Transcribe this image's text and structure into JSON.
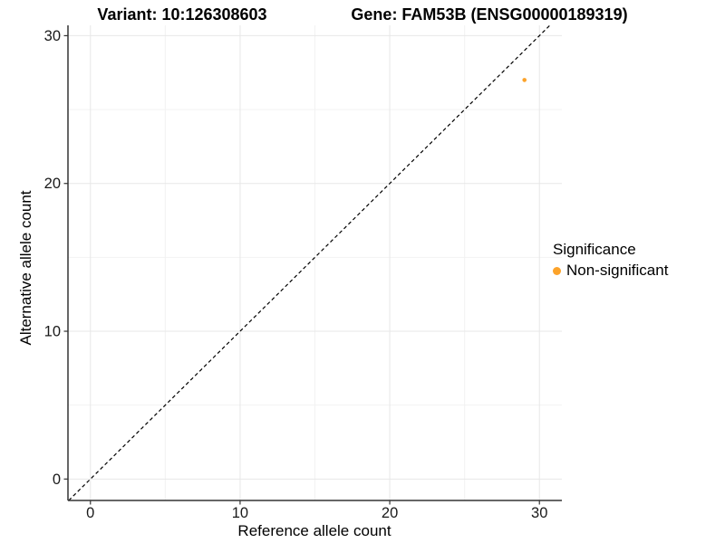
{
  "chart_data": {
    "type": "scatter",
    "title_left": "Variant: 10:126308603",
    "title_right": "Gene: FAM53B (ENSG00000189319)",
    "xlabel": "Reference allele count",
    "ylabel": "Alternative allele count",
    "xlim": [
      -1.5,
      31.5
    ],
    "ylim": [
      -1.45,
      30.7
    ],
    "x_ticks": [
      0,
      10,
      20,
      30
    ],
    "y_ticks": [
      0,
      10,
      20,
      30
    ],
    "x_minor_ticks": [
      5,
      15,
      25
    ],
    "y_minor_ticks": [
      5,
      15,
      25
    ],
    "grid": "major-and-minor, very light gray on white",
    "identity_line": {
      "slope": 1,
      "intercept": 0,
      "style": "dashed",
      "color": "#000000"
    },
    "series": [
      {
        "name": "Non-significant",
        "color": "#FCA32A",
        "points": [
          {
            "x": 29,
            "y": 27
          }
        ]
      }
    ],
    "legend": {
      "title": "Significance",
      "position": "right",
      "entries": [
        {
          "label": "Non-significant",
          "color": "#FCA32A"
        }
      ]
    },
    "colors": {
      "axis_line": "#333333",
      "tick_label": "#1a1a1a",
      "grid_major": "#e7e7e7",
      "grid_minor": "#f2f2f2"
    }
  }
}
